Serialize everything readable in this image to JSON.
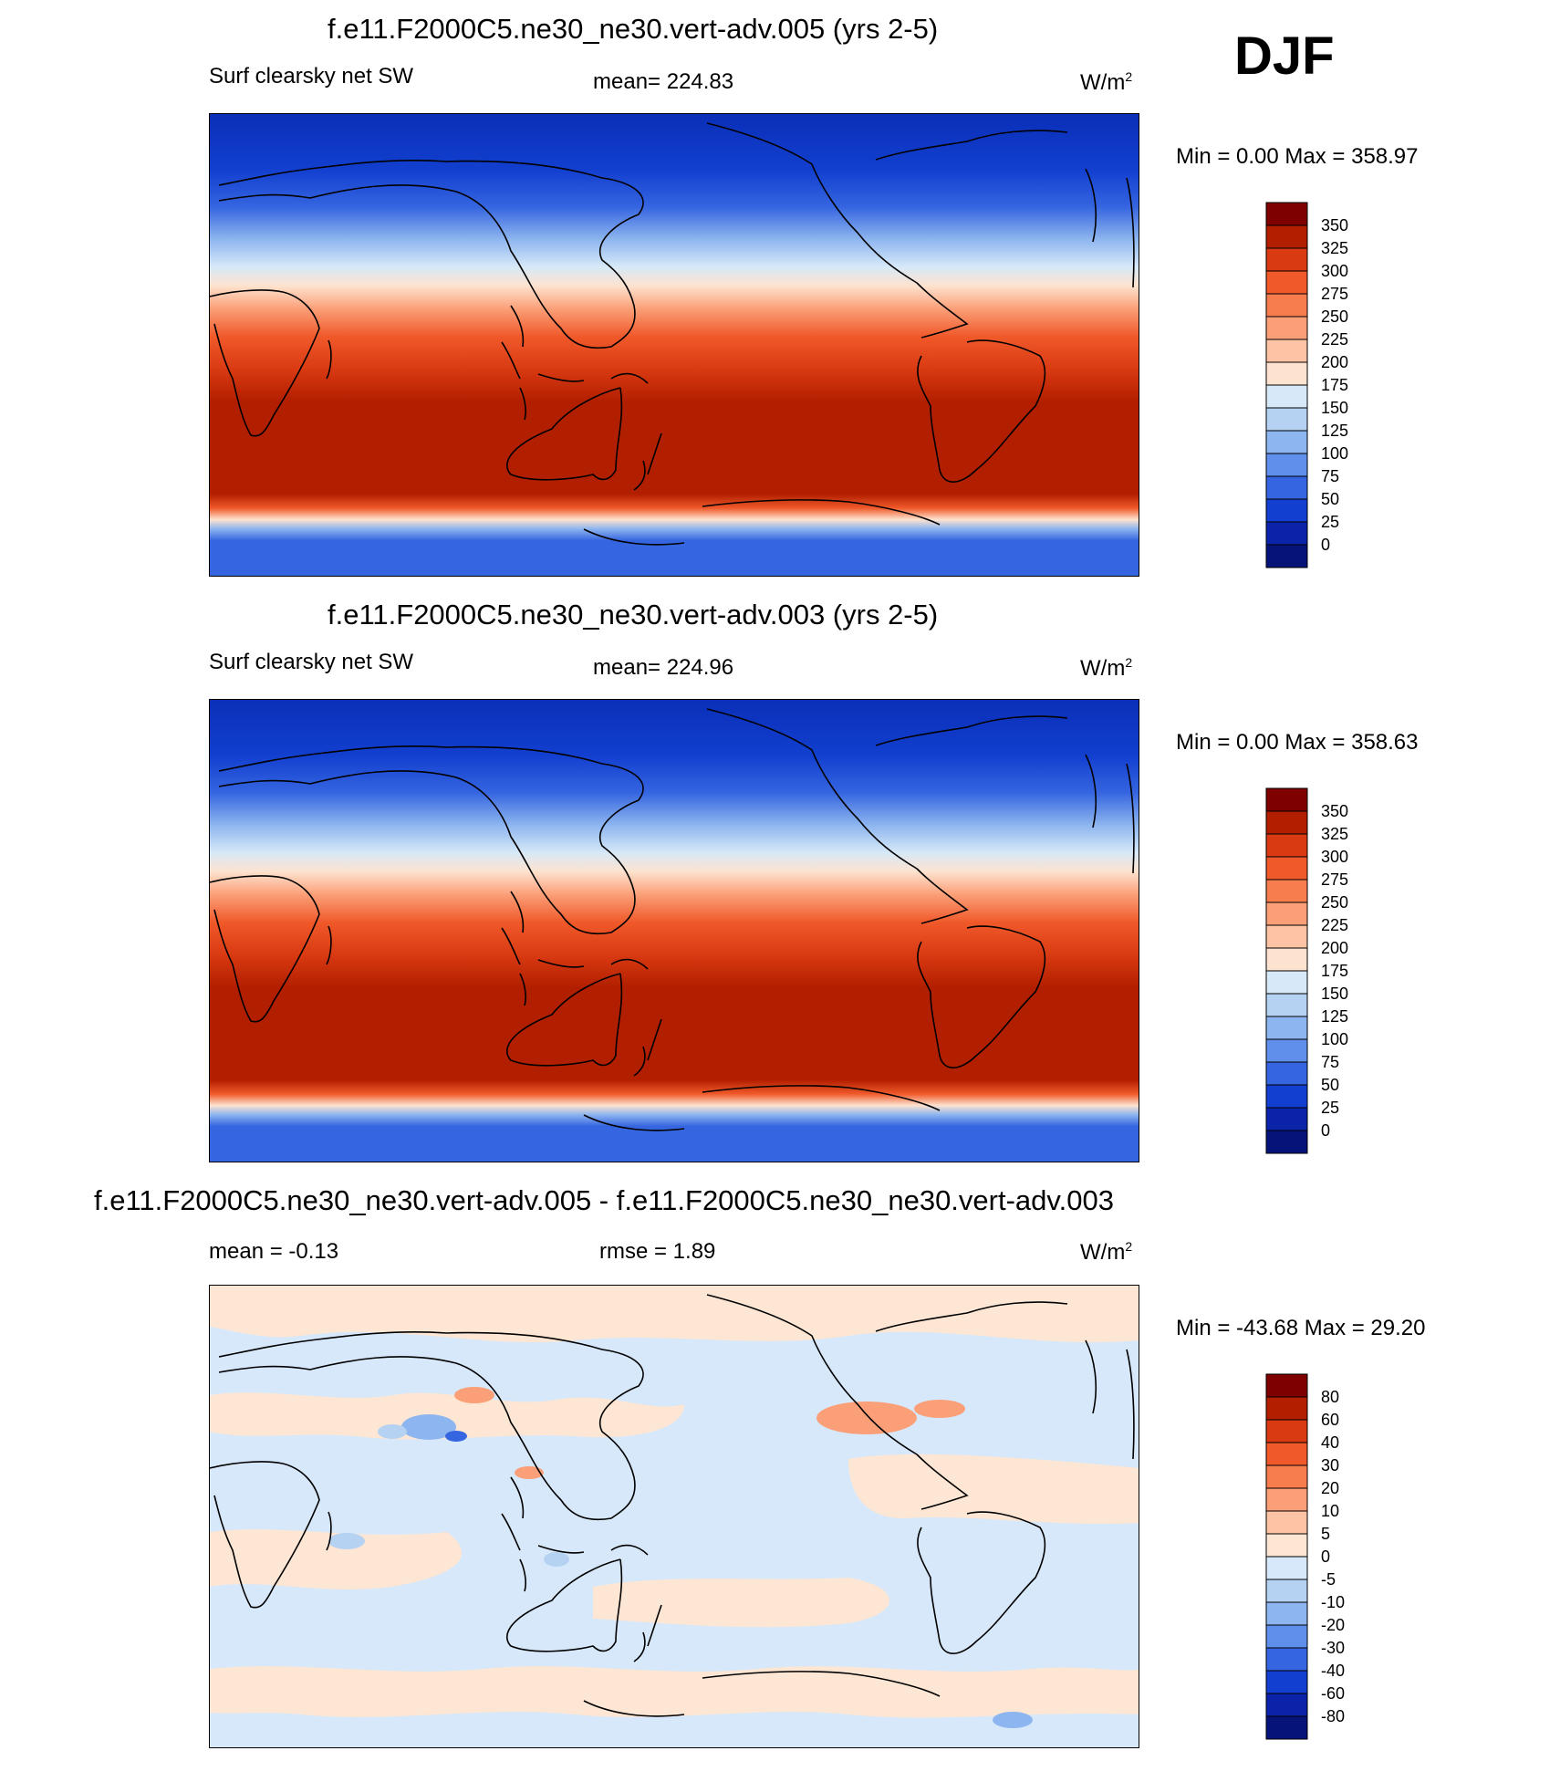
{
  "season": "DJF",
  "chart_data": [
    {
      "type": "heatmap",
      "title": "f.e11.F2000C5.ne30_ne30.vert-adv.005 (yrs 2-5)",
      "left_label": "Surf clearsky net SW",
      "center_label": "mean= 224.83",
      "units": "W/m",
      "units_sup": "2",
      "minmax": "Min =    0.00 Max = 358.97",
      "field": "absolute",
      "colorbar": {
        "levels": [
          "350",
          "325",
          "300",
          "275",
          "250",
          "225",
          "200",
          "175",
          "150",
          "125",
          "100",
          "75",
          "50",
          "25",
          "0"
        ],
        "colors": [
          "#7f0000",
          "#b21f00",
          "#d93a12",
          "#f0592a",
          "#f77c4e",
          "#fb9f78",
          "#fdc3a5",
          "#fde3cf",
          "#d7e9f8",
          "#b6d2f3",
          "#8db5ef",
          "#5f8fea",
          "#3565e0",
          "#123fcf",
          "#0a23a8",
          "#06147a"
        ]
      }
    },
    {
      "type": "heatmap",
      "title": "f.e11.F2000C5.ne30_ne30.vert-adv.003 (yrs 2-5)",
      "left_label": "Surf clearsky net SW",
      "center_label": "mean= 224.96",
      "units": "W/m",
      "units_sup": "2",
      "minmax": "Min =    0.00 Max = 358.63",
      "field": "absolute",
      "colorbar": {
        "levels": [
          "350",
          "325",
          "300",
          "275",
          "250",
          "225",
          "200",
          "175",
          "150",
          "125",
          "100",
          "75",
          "50",
          "25",
          "0"
        ],
        "colors": [
          "#7f0000",
          "#b21f00",
          "#d93a12",
          "#f0592a",
          "#f77c4e",
          "#fb9f78",
          "#fdc3a5",
          "#fde3cf",
          "#d7e9f8",
          "#b6d2f3",
          "#8db5ef",
          "#5f8fea",
          "#3565e0",
          "#123fcf",
          "#0a23a8",
          "#06147a"
        ]
      }
    },
    {
      "type": "heatmap",
      "title": "f.e11.F2000C5.ne30_ne30.vert-adv.005 - f.e11.F2000C5.ne30_ne30.vert-adv.003",
      "left_label": "mean =  -0.13",
      "center_label": "rmse =   1.89",
      "units": "W/m",
      "units_sup": "2",
      "minmax": "Min = -43.68 Max =  29.20",
      "field": "difference",
      "colorbar": {
        "levels": [
          "80",
          "60",
          "40",
          "30",
          "20",
          "10",
          "5",
          "0",
          "-5",
          "-10",
          "-20",
          "-30",
          "-40",
          "-60",
          "-80"
        ],
        "colors": [
          "#7f0000",
          "#b21f00",
          "#d93a12",
          "#f0592a",
          "#f77c4e",
          "#fb9f78",
          "#fdc3a5",
          "#fde6d3",
          "#d6e8fa",
          "#b6d2f3",
          "#8db5ef",
          "#5f8fea",
          "#3565e0",
          "#123fcf",
          "#0a23a8",
          "#06147a"
        ]
      }
    }
  ]
}
